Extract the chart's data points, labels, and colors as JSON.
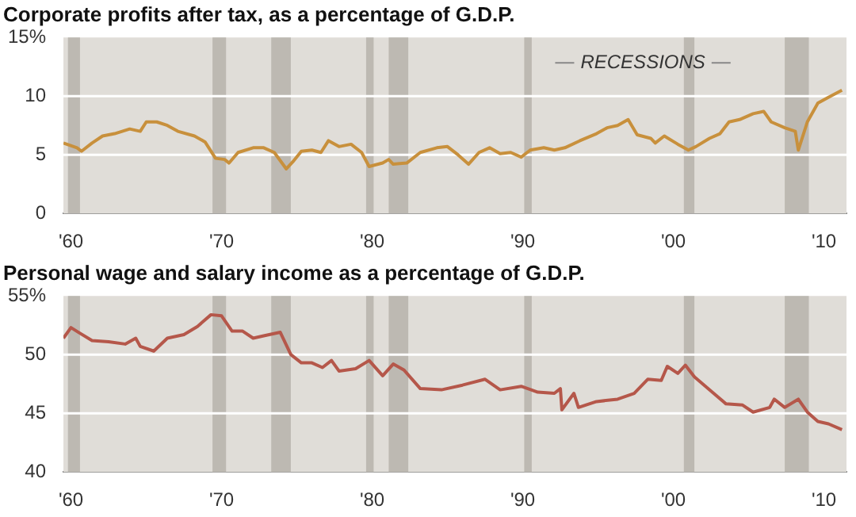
{
  "chart_data": [
    {
      "type": "line",
      "title": "Corporate profits after tax, as a percentage of G.D.P.",
      "xlim": [
        1959.5,
        2011.5
      ],
      "xticks": [
        {
          "value": 1960,
          "label": "'60"
        },
        {
          "value": 1970,
          "label": "'70"
        },
        {
          "value": 1980,
          "label": "'80"
        },
        {
          "value": 1990,
          "label": "'90"
        },
        {
          "value": 2000,
          "label": "'00"
        },
        {
          "value": 2010,
          "label": "'10"
        }
      ],
      "ylim": [
        0,
        15
      ],
      "yticks": [
        0,
        5,
        10,
        {
          "value": 15,
          "label": "15%"
        }
      ],
      "grid": "y",
      "annotations": [
        "RECESSIONS"
      ],
      "bands": [
        {
          "axis": "x",
          "from": 1959.8,
          "to": 1960.6,
          "color": "#bdb9b2"
        },
        {
          "axis": "x",
          "from": 1969.4,
          "to": 1970.3,
          "color": "#bdb9b2"
        },
        {
          "axis": "x",
          "from": 1973.3,
          "to": 1974.6,
          "color": "#bdb9b2"
        },
        {
          "axis": "x",
          "from": 1979.6,
          "to": 1980.1,
          "color": "#bdb9b2"
        },
        {
          "axis": "x",
          "from": 1981.1,
          "to": 1982.4,
          "color": "#bdb9b2"
        },
        {
          "axis": "x",
          "from": 1990.1,
          "to": 1990.6,
          "color": "#bdb9b2"
        },
        {
          "axis": "x",
          "from": 2000.7,
          "to": 2001.4,
          "color": "#bdb9b2"
        },
        {
          "axis": "x",
          "from": 2007.4,
          "to": 2009.0,
          "color": "#bdb9b2"
        }
      ],
      "series": [
        {
          "color": "#c8903c",
          "x": [
            1959.5,
            1960.4,
            1960.7,
            1961.4,
            1962.1,
            1962.9,
            1963.9,
            1964.6,
            1965.0,
            1965.7,
            1966.4,
            1967.1,
            1968.2,
            1968.9,
            1969.6,
            1970.2,
            1970.5,
            1971.1,
            1972.1,
            1972.8,
            1973.5,
            1974.3,
            1974.8,
            1975.3,
            1976.0,
            1976.6,
            1977.1,
            1977.8,
            1978.6,
            1979.3,
            1979.8,
            1980.7,
            1981.1,
            1981.4,
            1982.3,
            1983.2,
            1984.3,
            1985.0,
            1985.7,
            1986.4,
            1987.1,
            1987.8,
            1988.5,
            1989.2,
            1989.9,
            1990.5,
            1991.4,
            1992.1,
            1992.8,
            1993.8,
            1994.9,
            1995.6,
            1996.3,
            1997.0,
            1997.6,
            1998.5,
            1998.8,
            1999.4,
            2000.3,
            2001.0,
            2001.5,
            2002.4,
            2003.1,
            2003.7,
            2004.4,
            2005.3,
            2006.0,
            2006.5,
            2007.4,
            2008.1,
            2008.3,
            2008.9,
            2009.6,
            2010.3,
            2011.2
          ],
          "values": [
            6.0,
            5.6,
            5.3,
            6.0,
            6.6,
            6.8,
            7.2,
            7.0,
            7.8,
            7.8,
            7.5,
            7.0,
            6.6,
            6.1,
            4.7,
            4.6,
            4.3,
            5.2,
            5.6,
            5.6,
            5.2,
            3.8,
            4.5,
            5.3,
            5.4,
            5.2,
            6.2,
            5.7,
            5.9,
            5.2,
            4.0,
            4.3,
            4.6,
            4.2,
            4.3,
            5.2,
            5.6,
            5.7,
            5.0,
            4.2,
            5.2,
            5.6,
            5.1,
            5.2,
            4.8,
            5.4,
            5.6,
            5.4,
            5.6,
            6.2,
            6.8,
            7.3,
            7.5,
            8.0,
            6.7,
            6.4,
            6.0,
            6.6,
            5.9,
            5.4,
            5.7,
            6.4,
            6.8,
            7.8,
            8.0,
            8.5,
            8.7,
            7.8,
            7.3,
            7.0,
            5.4,
            7.8,
            9.4,
            9.9,
            10.5
          ]
        }
      ]
    },
    {
      "type": "line",
      "title": "Personal wage and salary income as a percentage of G.D.P.",
      "xlim": [
        1959.5,
        2011.5
      ],
      "xticks": [
        {
          "value": 1960,
          "label": "'60"
        },
        {
          "value": 1970,
          "label": "'70"
        },
        {
          "value": 1980,
          "label": "'80"
        },
        {
          "value": 1990,
          "label": "'90"
        },
        {
          "value": 2000,
          "label": "'00"
        },
        {
          "value": 2010,
          "label": "'10"
        }
      ],
      "ylim": [
        40,
        55
      ],
      "yticks": [
        40,
        45,
        50,
        {
          "value": 55,
          "label": "55%"
        }
      ],
      "grid": "y",
      "bands": [
        {
          "axis": "x",
          "from": 1959.8,
          "to": 1960.6,
          "color": "#bdb9b2"
        },
        {
          "axis": "x",
          "from": 1969.4,
          "to": 1970.3,
          "color": "#bdb9b2"
        },
        {
          "axis": "x",
          "from": 1973.3,
          "to": 1974.6,
          "color": "#bdb9b2"
        },
        {
          "axis": "x",
          "from": 1979.6,
          "to": 1980.1,
          "color": "#bdb9b2"
        },
        {
          "axis": "x",
          "from": 1981.1,
          "to": 1982.4,
          "color": "#bdb9b2"
        },
        {
          "axis": "x",
          "from": 1990.1,
          "to": 1990.6,
          "color": "#bdb9b2"
        },
        {
          "axis": "x",
          "from": 2000.7,
          "to": 2001.4,
          "color": "#bdb9b2"
        },
        {
          "axis": "x",
          "from": 2007.4,
          "to": 2009.0,
          "color": "#bdb9b2"
        }
      ],
      "series": [
        {
          "color": "#b5574a",
          "x": [
            1959.5,
            1960.0,
            1960.5,
            1961.4,
            1962.5,
            1963.6,
            1964.3,
            1964.6,
            1965.5,
            1966.4,
            1967.5,
            1968.4,
            1969.3,
            1970.0,
            1970.7,
            1971.4,
            1972.1,
            1972.8,
            1973.9,
            1974.6,
            1975.3,
            1976.0,
            1976.7,
            1977.3,
            1977.8,
            1978.9,
            1979.8,
            1980.7,
            1981.4,
            1982.1,
            1983.2,
            1984.6,
            1986.0,
            1987.5,
            1988.5,
            1989.9,
            1991.0,
            1992.1,
            1992.5,
            1992.6,
            1993.4,
            1993.7,
            1994.9,
            1996.3,
            1997.4,
            1998.3,
            1999.2,
            1999.6,
            2000.3,
            2000.8,
            2001.4,
            2002.4,
            2003.5,
            2004.6,
            2005.3,
            2006.4,
            2006.7,
            2007.4,
            2008.3,
            2008.9,
            2009.6,
            2010.3,
            2011.2
          ],
          "values": [
            51.4,
            52.3,
            51.9,
            51.2,
            51.1,
            50.9,
            51.4,
            50.7,
            50.3,
            51.4,
            51.7,
            52.4,
            53.4,
            53.3,
            52.0,
            52.0,
            51.4,
            51.6,
            51.9,
            50.0,
            49.3,
            49.3,
            48.9,
            49.5,
            48.6,
            48.8,
            49.5,
            48.2,
            49.2,
            48.7,
            47.1,
            47.0,
            47.4,
            47.9,
            47.0,
            47.3,
            46.8,
            46.7,
            47.1,
            45.3,
            46.7,
            45.5,
            46.0,
            46.2,
            46.7,
            47.9,
            47.8,
            49.0,
            48.4,
            49.1,
            48.1,
            47.0,
            45.8,
            45.7,
            45.1,
            45.5,
            46.2,
            45.5,
            46.2,
            45.1,
            44.3,
            44.1,
            43.6
          ]
        }
      ]
    }
  ]
}
